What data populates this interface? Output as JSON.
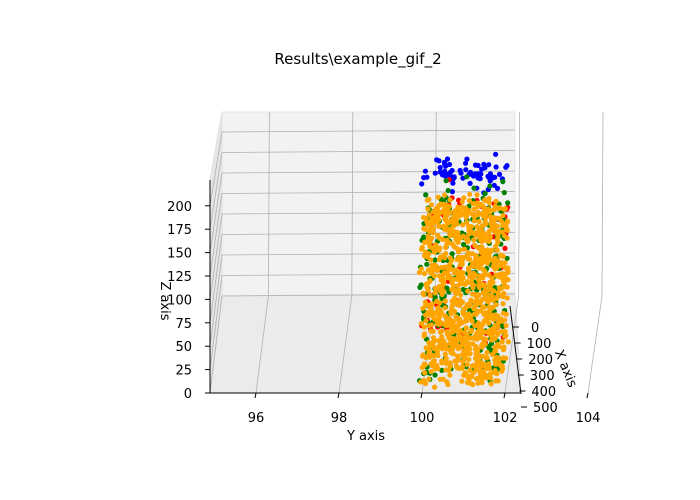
{
  "chart_data": {
    "type": "scatter",
    "projection": "3d",
    "title": "Results\\example_gif_2",
    "xlabel": "Y axis",
    "ylabel": "Z axis",
    "zlabel": "X axis",
    "y_axis_ticks": [
      "96",
      "98",
      "100",
      "102",
      "104"
    ],
    "z_axis_ticks": [
      "0",
      "25",
      "50",
      "75",
      "100",
      "125",
      "150",
      "175",
      "200"
    ],
    "x_axis_ticks": [
      "0",
      "100",
      "200",
      "300",
      "400",
      "500"
    ],
    "y_range": [
      94.8,
      105
    ],
    "z_range": [
      0,
      220
    ],
    "grid": true,
    "series": [
      {
        "color": "#0000ff",
        "z_range": [
          205,
          225
        ],
        "y_range": [
          100,
          102
        ],
        "density": 70
      },
      {
        "color": "#ff0000",
        "z_range": [
          40,
          210
        ],
        "y_range": [
          100,
          102
        ],
        "density": 70
      },
      {
        "color": "#008000",
        "z_range": [
          5,
          200
        ],
        "y_range": [
          100,
          102
        ],
        "density": 280
      },
      {
        "color": "#ffa500",
        "z_range": [
          0,
          188
        ],
        "y_range": [
          100,
          102
        ],
        "density": 950
      }
    ]
  }
}
